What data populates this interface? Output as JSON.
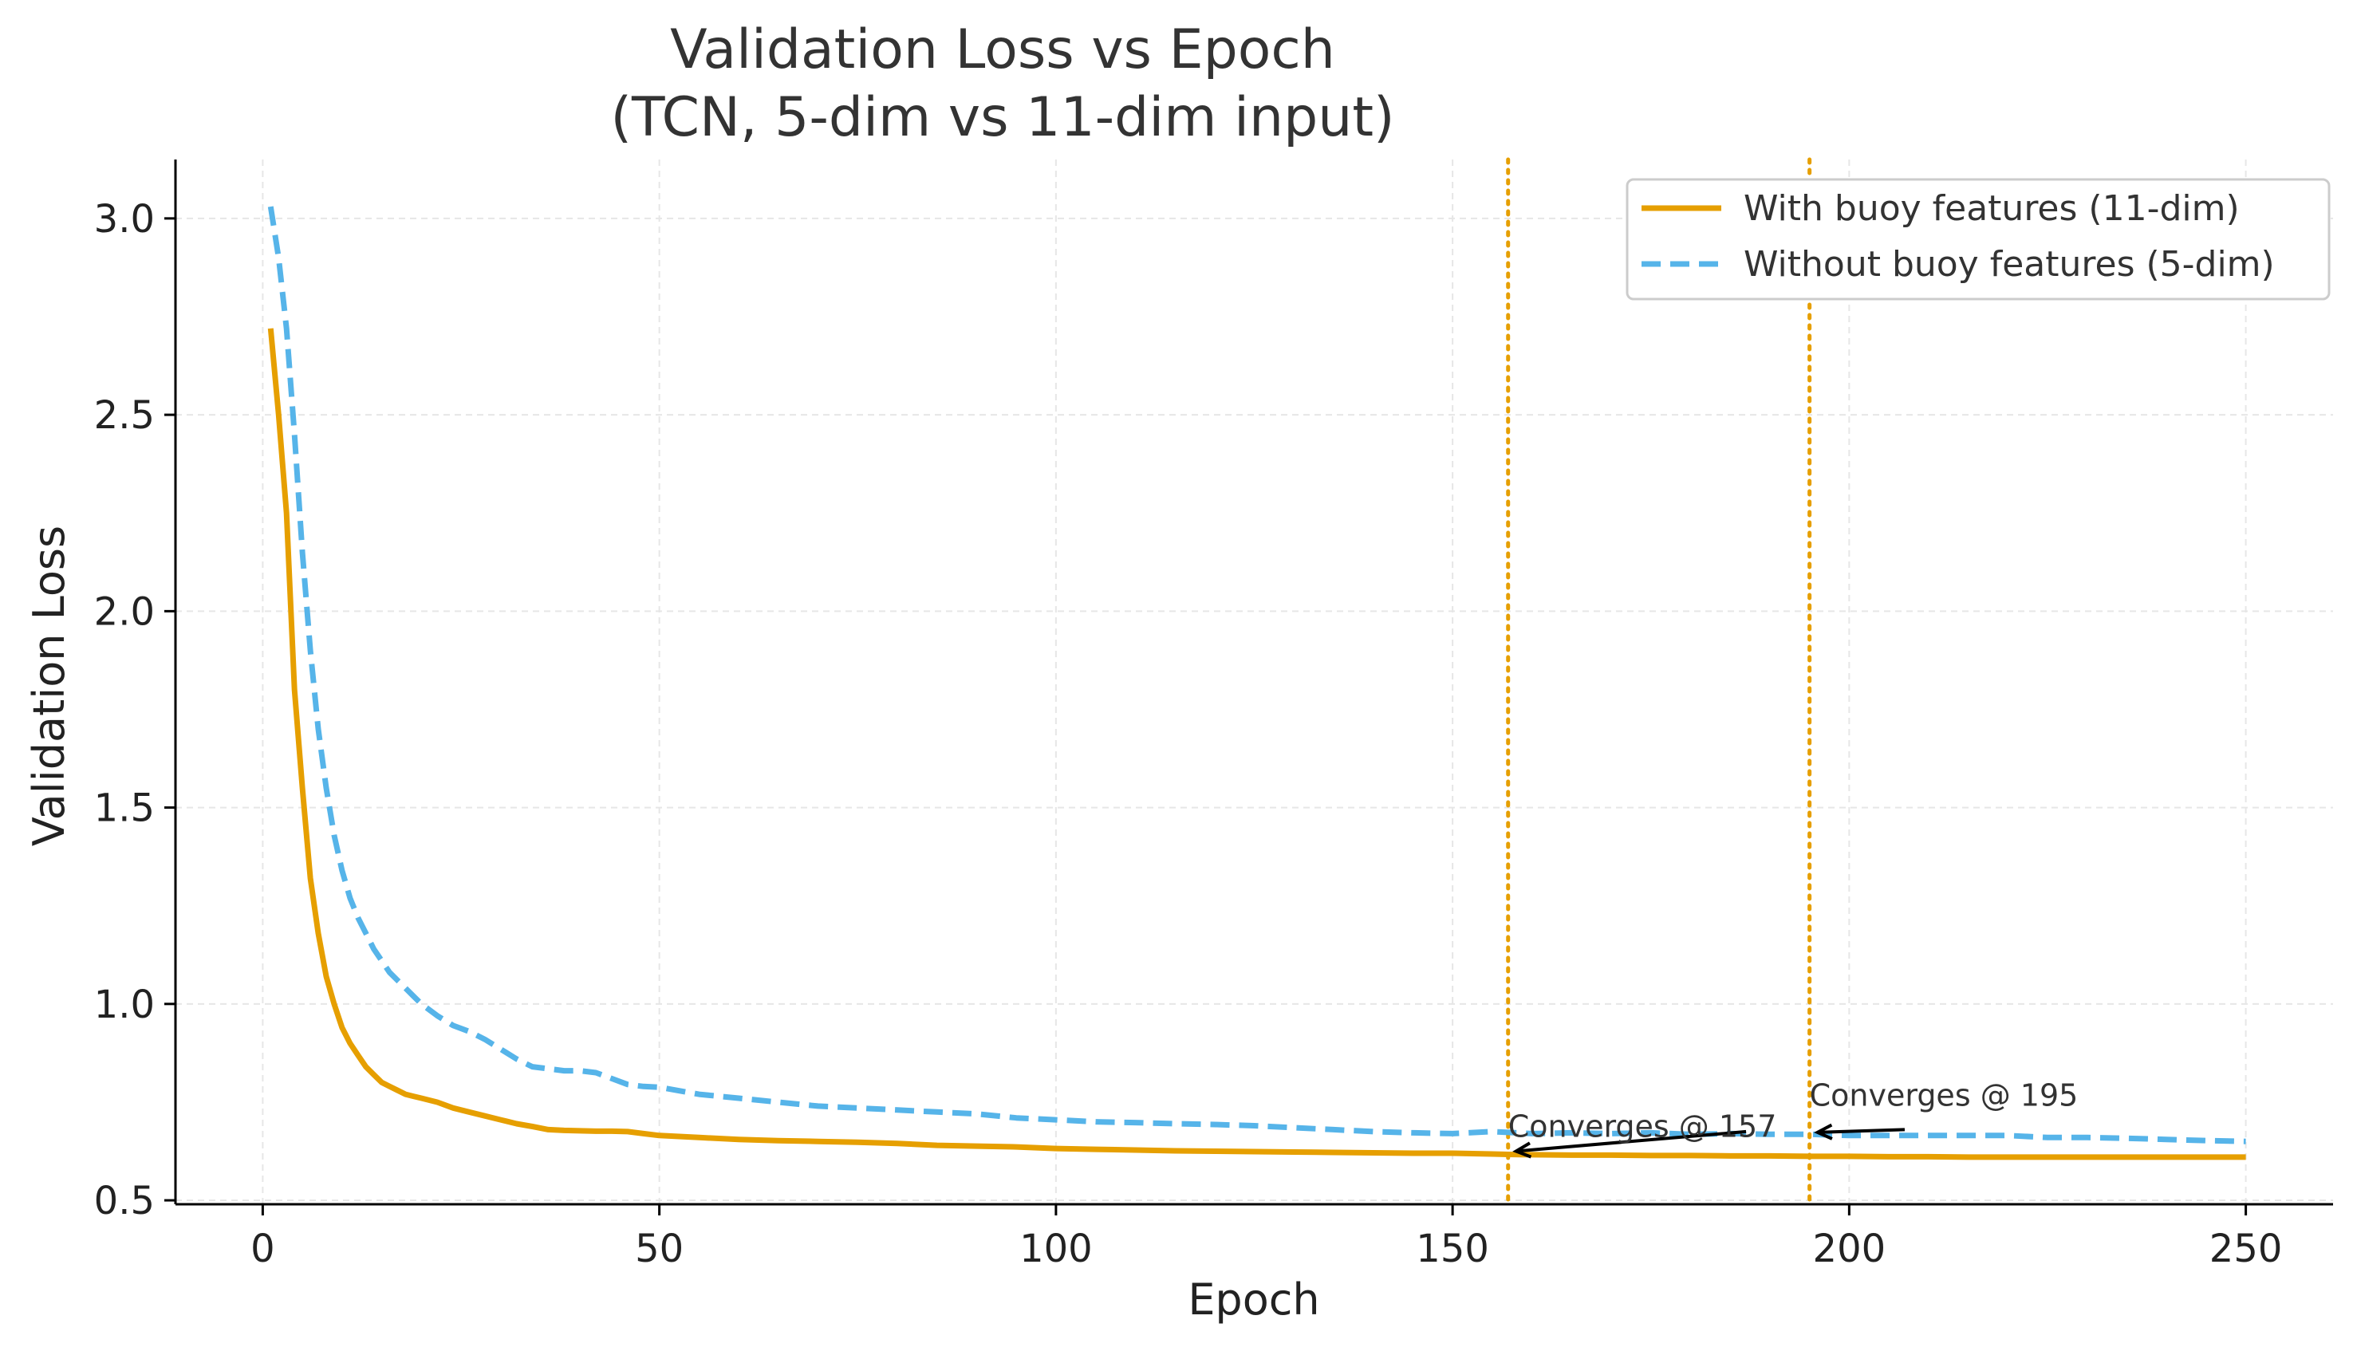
{
  "chart_data": {
    "type": "line",
    "title": [
      "Validation Loss vs Epoch",
      "(TCN, 5-dim vs 11-dim input)"
    ],
    "xlabel": "Epoch",
    "ylabel": "Validation Loss",
    "xlim": [
      -11,
      261
    ],
    "ylim": [
      0.49,
      3.15
    ],
    "xticks": [
      0,
      50,
      100,
      150,
      200,
      250
    ],
    "xtick_labels": [
      "0",
      "50",
      "100",
      "150",
      "200",
      "250"
    ],
    "yticks": [
      0.5,
      1.0,
      1.5,
      2.0,
      2.5,
      3.0
    ],
    "ytick_labels": [
      "0.5",
      "1.0",
      "1.5",
      "2.0",
      "2.5",
      "3.0"
    ],
    "grid": true,
    "legend_position": "top-right",
    "series": [
      {
        "name": "With buoy features (11-dim)",
        "color": "#E69F00",
        "style": "solid",
        "x": [
          1,
          2,
          3,
          4,
          5,
          6,
          7,
          8,
          9,
          10,
          11,
          12,
          13,
          14,
          15,
          16,
          17,
          18,
          19,
          20,
          22,
          24,
          26,
          28,
          30,
          32,
          34,
          36,
          38,
          40,
          42,
          44,
          46,
          48,
          50,
          55,
          60,
          65,
          70,
          75,
          80,
          85,
          90,
          95,
          100,
          105,
          110,
          115,
          120,
          125,
          130,
          135,
          140,
          145,
          150,
          155,
          157,
          160,
          165,
          170,
          175,
          180,
          185,
          190,
          195,
          200,
          205,
          210,
          215,
          220,
          225,
          230,
          235,
          240,
          245,
          250
        ],
        "y": [
          2.72,
          2.5,
          2.25,
          1.8,
          1.55,
          1.32,
          1.18,
          1.07,
          1.0,
          0.94,
          0.9,
          0.87,
          0.84,
          0.82,
          0.8,
          0.79,
          0.78,
          0.77,
          0.765,
          0.76,
          0.75,
          0.735,
          0.725,
          0.715,
          0.705,
          0.695,
          0.688,
          0.68,
          0.678,
          0.677,
          0.676,
          0.676,
          0.675,
          0.67,
          0.665,
          0.66,
          0.655,
          0.652,
          0.65,
          0.648,
          0.645,
          0.64,
          0.638,
          0.636,
          0.632,
          0.63,
          0.628,
          0.626,
          0.625,
          0.624,
          0.623,
          0.622,
          0.621,
          0.62,
          0.62,
          0.618,
          0.617,
          0.616,
          0.615,
          0.615,
          0.614,
          0.614,
          0.613,
          0.613,
          0.612,
          0.612,
          0.611,
          0.611,
          0.61,
          0.61,
          0.61,
          0.61,
          0.61,
          0.61,
          0.61,
          0.61
        ]
      },
      {
        "name": "Without buoy features (5-dim)",
        "color": "#56B4E9",
        "style": "dashed",
        "x": [
          1,
          2,
          3,
          4,
          5,
          6,
          7,
          8,
          9,
          10,
          11,
          12,
          13,
          14,
          15,
          16,
          17,
          18,
          19,
          20,
          22,
          24,
          26,
          28,
          30,
          32,
          34,
          36,
          38,
          40,
          42,
          44,
          46,
          48,
          50,
          55,
          60,
          65,
          70,
          75,
          80,
          85,
          90,
          95,
          100,
          105,
          110,
          115,
          120,
          125,
          130,
          135,
          140,
          145,
          150,
          155,
          160,
          165,
          170,
          175,
          180,
          185,
          190,
          195,
          200,
          205,
          210,
          215,
          220,
          225,
          230,
          235,
          240,
          245,
          250
        ],
        "y": [
          3.03,
          2.9,
          2.72,
          2.45,
          2.15,
          1.9,
          1.7,
          1.55,
          1.43,
          1.34,
          1.27,
          1.22,
          1.18,
          1.14,
          1.11,
          1.08,
          1.06,
          1.04,
          1.02,
          1.0,
          0.97,
          0.945,
          0.93,
          0.91,
          0.885,
          0.86,
          0.84,
          0.835,
          0.83,
          0.83,
          0.825,
          0.81,
          0.795,
          0.79,
          0.788,
          0.77,
          0.76,
          0.75,
          0.74,
          0.735,
          0.73,
          0.725,
          0.72,
          0.71,
          0.705,
          0.7,
          0.698,
          0.695,
          0.693,
          0.69,
          0.685,
          0.68,
          0.675,
          0.672,
          0.67,
          0.675,
          0.67,
          0.672,
          0.67,
          0.672,
          0.668,
          0.67,
          0.668,
          0.668,
          0.665,
          0.665,
          0.665,
          0.665,
          0.665,
          0.66,
          0.66,
          0.658,
          0.655,
          0.652,
          0.65
        ]
      }
    ],
    "vlines": [
      {
        "x": 157,
        "color": "#E69F00",
        "style": "dotted"
      },
      {
        "x": 195,
        "color": "#E69F00",
        "style": "dotted"
      }
    ],
    "annotations": [
      {
        "text": "Converges @ 157",
        "point_x": 157,
        "point_y": 0.617,
        "text_x": 157,
        "text_y": 0.645
      },
      {
        "text": "Converges @ 195",
        "point_x": 195,
        "point_y": 0.665,
        "text_x": 195,
        "text_y": 0.725
      }
    ]
  }
}
